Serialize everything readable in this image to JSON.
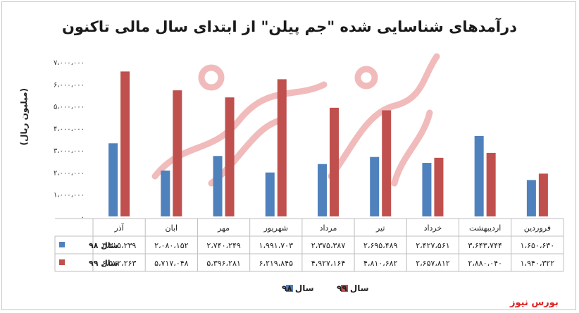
{
  "chart_data": {
    "type": "bar",
    "title": "درآمدهای شناسایی شده \"جم پیلن\" از ابتدای سال مالی تاکنون",
    "ylabel": "(میلیون ریال)",
    "ylim": [
      0,
      7000000
    ],
    "y_ticks": [
      "۰",
      "۱،۰۰۰،۰۰۰",
      "۲،۰۰۰،۰۰۰",
      "۳،۰۰۰،۰۰۰",
      "۴،۰۰۰،۰۰۰",
      "۵،۰۰۰،۰۰۰",
      "۶،۰۰۰،۰۰۰",
      "۷،۰۰۰،۰۰۰"
    ],
    "categories": [
      "فروردین",
      "اردیبهشت",
      "خرداد",
      "تیر",
      "مرداد",
      "شهریور",
      "مهر",
      "ابان",
      "آذر"
    ],
    "series": [
      {
        "name": "سال ۹۸",
        "color": "#4f81bd",
        "values": [
          1650630,
          3643744,
          2427561,
          2695489,
          2375387,
          1991703,
          2740249,
          2080152,
          3315239
        ],
        "labels": [
          "۱،۶۵۰،۶۳۰",
          "۳،۶۴۳،۷۴۴",
          "۲،۴۲۷،۵۶۱",
          "۲،۶۹۵،۴۸۹",
          "۲،۳۷۵،۳۸۷",
          "۱،۹۹۱،۷۰۳",
          "۲،۷۴۰،۲۴۹",
          "۲،۰۸۰،۱۵۲",
          "۳،۳۱۵،۲۳۹"
        ]
      },
      {
        "name": "سال ۹۹",
        "color": "#c0504d",
        "values": [
          1940322,
          2880040,
          2657812,
          4810682,
          4927164,
          6219845,
          5396281,
          5717048,
          6572263
        ],
        "labels": [
          "۱،۹۴۰،۳۲۲",
          "۲،۸۸۰،۰۴۰",
          "۲،۶۵۷،۸۱۲",
          "۴،۸۱۰،۶۸۲",
          "۴،۹۲۷،۱۶۴",
          "۶،۲۱۹،۸۴۵",
          "۵،۳۹۶،۲۸۱",
          "۵،۷۱۷،۰۴۸",
          "۶،۵۷۲،۲۶۳"
        ]
      }
    ],
    "legend_position": "bottom",
    "grid": false,
    "data_table": true
  },
  "watermark": "بورس نیوز"
}
